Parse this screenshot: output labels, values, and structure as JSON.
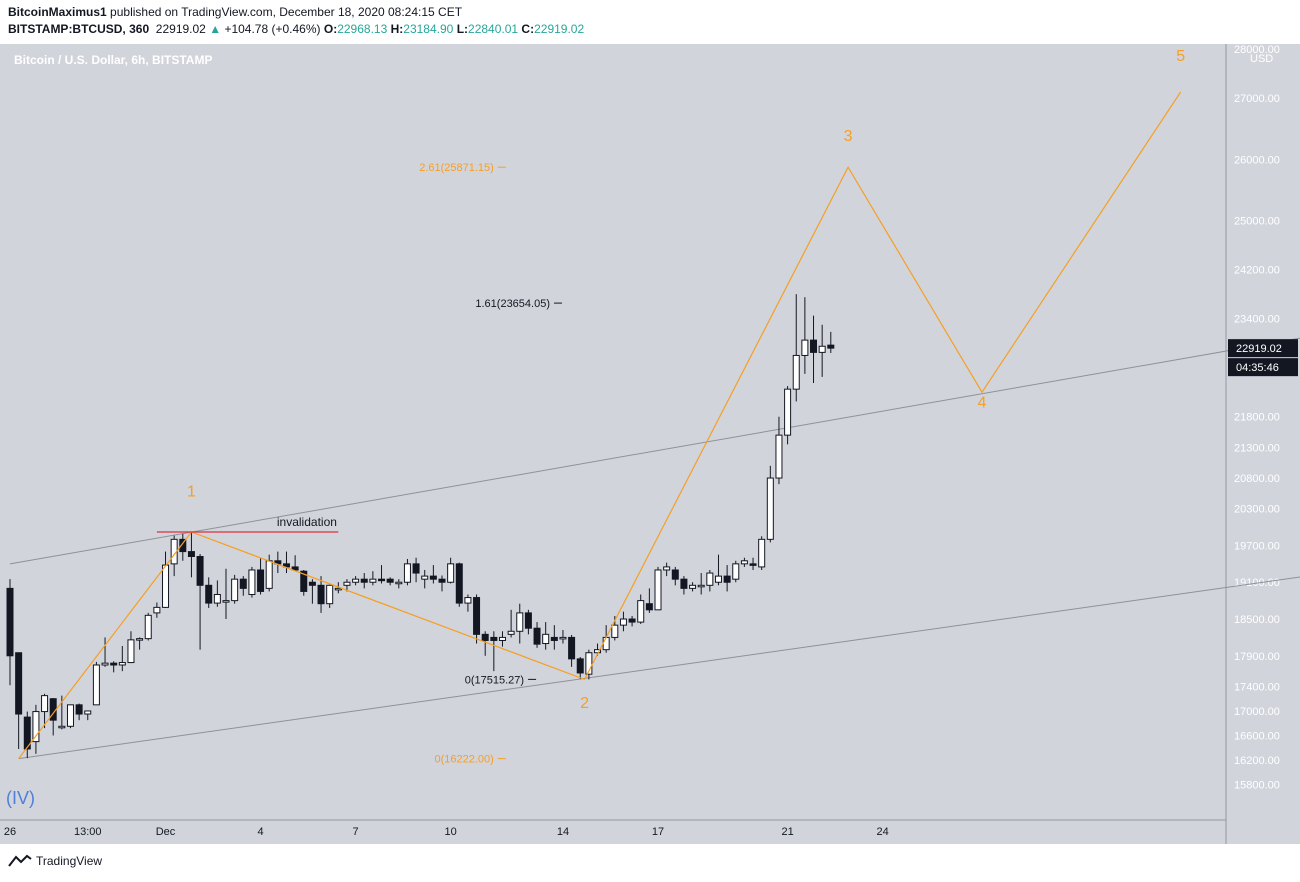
{
  "header": {
    "author": "BitcoinMaximus1",
    "published_text": "published on TradingView.com, December 18, 2020 08:24:15 CET",
    "symbol": "BITSTAMP:BTCUSD, 360",
    "last": "22919.02",
    "change": "+104.78 (+0.46%)",
    "open_label": "O:",
    "open": "22968.13",
    "high_label": "H:",
    "high": "23184.90",
    "low_label": "L:",
    "low": "22840.01",
    "close_label": "C:",
    "close": "22919.02"
  },
  "footer": {
    "brand": "TradingView"
  },
  "colors": {
    "plot_bg": "#d2d4dc",
    "wave": "#f59f24",
    "channel": "#8f9199",
    "invalidation": "#e0323d",
    "roman": "#4e7fd9"
  },
  "chart_data": {
    "type": "candlestick",
    "title": "Bitcoin / U.S. Dollar, 6h, BITSTAMP",
    "currency": "USD",
    "y_ticks": [
      15800,
      16200,
      16600,
      17000,
      17400,
      17900,
      18500,
      19100,
      19700,
      20300,
      20800,
      21300,
      21800,
      22900,
      23400,
      24200,
      25000,
      26000,
      27000
    ],
    "y_top_label": "28000.00",
    "x_ticks": [
      {
        "label": "26",
        "x": 0
      },
      {
        "label": "13:00",
        "x": 18
      },
      {
        "label": "Dec",
        "x": 36
      },
      {
        "label": "4",
        "x": 58
      },
      {
        "label": "7",
        "x": 80
      },
      {
        "label": "10",
        "x": 102
      },
      {
        "label": "14",
        "x": 128
      },
      {
        "label": "17",
        "x": 150
      },
      {
        "label": "21",
        "x": 180
      },
      {
        "label": "24",
        "x": 202
      }
    ],
    "price_label": "22919.02",
    "countdown_label": "04:35:46",
    "candles": [
      {
        "t": 0,
        "o": 19000,
        "h": 19150,
        "l": 17420,
        "c": 17900
      },
      {
        "t": 2,
        "o": 17950,
        "h": 17950,
        "l": 16380,
        "c": 16950
      },
      {
        "t": 4,
        "o": 16900,
        "h": 16990,
        "l": 16230,
        "c": 16380
      },
      {
        "t": 6,
        "o": 16500,
        "h": 17100,
        "l": 16300,
        "c": 16990
      },
      {
        "t": 8,
        "o": 16990,
        "h": 17280,
        "l": 16720,
        "c": 17250
      },
      {
        "t": 10,
        "o": 17200,
        "h": 17210,
        "l": 16600,
        "c": 16850
      },
      {
        "t": 12,
        "o": 16750,
        "h": 17250,
        "l": 16700,
        "c": 16750
      },
      {
        "t": 14,
        "o": 16750,
        "h": 17100,
        "l": 16720,
        "c": 17100
      },
      {
        "t": 16,
        "o": 17100,
        "h": 17120,
        "l": 16850,
        "c": 16950
      },
      {
        "t": 18,
        "o": 16950,
        "h": 17000,
        "l": 16850,
        "c": 17000
      },
      {
        "t": 20,
        "o": 17100,
        "h": 17800,
        "l": 17100,
        "c": 17750
      },
      {
        "t": 22,
        "o": 17750,
        "h": 18200,
        "l": 17720,
        "c": 17780
      },
      {
        "t": 24,
        "o": 17780,
        "h": 17810,
        "l": 17630,
        "c": 17750
      },
      {
        "t": 26,
        "o": 17750,
        "h": 18060,
        "l": 17650,
        "c": 17790
      },
      {
        "t": 28,
        "o": 17790,
        "h": 18300,
        "l": 17780,
        "c": 18160
      },
      {
        "t": 30,
        "o": 18160,
        "h": 18200,
        "l": 18000,
        "c": 18180
      },
      {
        "t": 32,
        "o": 18180,
        "h": 18600,
        "l": 18150,
        "c": 18560
      },
      {
        "t": 34,
        "o": 18600,
        "h": 18770,
        "l": 18520,
        "c": 18690
      },
      {
        "t": 36,
        "o": 18690,
        "h": 19600,
        "l": 18680,
        "c": 19380
      },
      {
        "t": 38,
        "o": 19400,
        "h": 19860,
        "l": 19200,
        "c": 19800
      },
      {
        "t": 40,
        "o": 19800,
        "h": 19890,
        "l": 19450,
        "c": 19600
      },
      {
        "t": 42,
        "o": 19600,
        "h": 19920,
        "l": 19180,
        "c": 19520
      },
      {
        "t": 44,
        "o": 19520,
        "h": 19560,
        "l": 18000,
        "c": 19050
      },
      {
        "t": 46,
        "o": 19050,
        "h": 19180,
        "l": 18680,
        "c": 18760
      },
      {
        "t": 48,
        "o": 18760,
        "h": 19130,
        "l": 18700,
        "c": 18900
      },
      {
        "t": 50,
        "o": 18800,
        "h": 19320,
        "l": 18500,
        "c": 18800
      },
      {
        "t": 52,
        "o": 18800,
        "h": 19220,
        "l": 18750,
        "c": 19150
      },
      {
        "t": 54,
        "o": 19150,
        "h": 19200,
        "l": 18880,
        "c": 19000
      },
      {
        "t": 56,
        "o": 18900,
        "h": 19350,
        "l": 18850,
        "c": 19300
      },
      {
        "t": 58,
        "o": 19300,
        "h": 19490,
        "l": 18900,
        "c": 18950
      },
      {
        "t": 60,
        "o": 19000,
        "h": 19550,
        "l": 18950,
        "c": 19450
      },
      {
        "t": 62,
        "o": 19450,
        "h": 19600,
        "l": 19250,
        "c": 19400
      },
      {
        "t": 64,
        "o": 19400,
        "h": 19600,
        "l": 19250,
        "c": 19350
      },
      {
        "t": 66,
        "o": 19350,
        "h": 19540,
        "l": 19300,
        "c": 19300
      },
      {
        "t": 68,
        "o": 19280,
        "h": 19300,
        "l": 18880,
        "c": 18950
      },
      {
        "t": 70,
        "o": 19100,
        "h": 19150,
        "l": 18750,
        "c": 19050
      },
      {
        "t": 72,
        "o": 19050,
        "h": 19200,
        "l": 18600,
        "c": 18750
      },
      {
        "t": 74,
        "o": 18750,
        "h": 19060,
        "l": 18680,
        "c": 19050
      },
      {
        "t": 76,
        "o": 18980,
        "h": 19100,
        "l": 18920,
        "c": 19000
      },
      {
        "t": 78,
        "o": 19050,
        "h": 19150,
        "l": 18950,
        "c": 19100
      },
      {
        "t": 80,
        "o": 19100,
        "h": 19200,
        "l": 19050,
        "c": 19150
      },
      {
        "t": 82,
        "o": 19150,
        "h": 19250,
        "l": 19000,
        "c": 19100
      },
      {
        "t": 84,
        "o": 19100,
        "h": 19280,
        "l": 19050,
        "c": 19150
      },
      {
        "t": 86,
        "o": 19150,
        "h": 19380,
        "l": 19080,
        "c": 19130
      },
      {
        "t": 88,
        "o": 19150,
        "h": 19180,
        "l": 19050,
        "c": 19100
      },
      {
        "t": 90,
        "o": 19100,
        "h": 19150,
        "l": 19000,
        "c": 19100
      },
      {
        "t": 92,
        "o": 19100,
        "h": 19480,
        "l": 19050,
        "c": 19400
      },
      {
        "t": 94,
        "o": 19400,
        "h": 19500,
        "l": 19100,
        "c": 19250
      },
      {
        "t": 96,
        "o": 19150,
        "h": 19300,
        "l": 19000,
        "c": 19200
      },
      {
        "t": 98,
        "o": 19200,
        "h": 19380,
        "l": 19080,
        "c": 19150
      },
      {
        "t": 100,
        "o": 19150,
        "h": 19210,
        "l": 18950,
        "c": 19100
      },
      {
        "t": 102,
        "o": 19100,
        "h": 19500,
        "l": 19080,
        "c": 19400
      },
      {
        "t": 104,
        "o": 19400,
        "h": 19420,
        "l": 18700,
        "c": 18760
      },
      {
        "t": 106,
        "o": 18760,
        "h": 18900,
        "l": 18620,
        "c": 18850
      },
      {
        "t": 108,
        "o": 18850,
        "h": 18900,
        "l": 18100,
        "c": 18250
      },
      {
        "t": 110,
        "o": 18250,
        "h": 18300,
        "l": 17900,
        "c": 18150
      },
      {
        "t": 112,
        "o": 18200,
        "h": 18300,
        "l": 17650,
        "c": 18150
      },
      {
        "t": 114,
        "o": 18150,
        "h": 18300,
        "l": 18050,
        "c": 18200
      },
      {
        "t": 116,
        "o": 18250,
        "h": 18650,
        "l": 18200,
        "c": 18300
      },
      {
        "t": 118,
        "o": 18300,
        "h": 18750,
        "l": 18100,
        "c": 18600
      },
      {
        "t": 120,
        "o": 18600,
        "h": 18650,
        "l": 18250,
        "c": 18350
      },
      {
        "t": 122,
        "o": 18350,
        "h": 18450,
        "l": 18030,
        "c": 18090
      },
      {
        "t": 124,
        "o": 18100,
        "h": 18450,
        "l": 18000,
        "c": 18250
      },
      {
        "t": 126,
        "o": 18200,
        "h": 18400,
        "l": 18000,
        "c": 18150
      },
      {
        "t": 128,
        "o": 18180,
        "h": 18320,
        "l": 18100,
        "c": 18200
      },
      {
        "t": 130,
        "o": 18200,
        "h": 18240,
        "l": 17720,
        "c": 17850
      },
      {
        "t": 132,
        "o": 17850,
        "h": 17880,
        "l": 17520,
        "c": 17620
      },
      {
        "t": 134,
        "o": 17600,
        "h": 18000,
        "l": 17515,
        "c": 17950
      },
      {
        "t": 136,
        "o": 17950,
        "h": 18100,
        "l": 17900,
        "c": 18000
      },
      {
        "t": 138,
        "o": 18000,
        "h": 18400,
        "l": 17950,
        "c": 18200
      },
      {
        "t": 140,
        "o": 18200,
        "h": 18550,
        "l": 18150,
        "c": 18400
      },
      {
        "t": 142,
        "o": 18400,
        "h": 18620,
        "l": 18300,
        "c": 18500
      },
      {
        "t": 144,
        "o": 18500,
        "h": 18550,
        "l": 18380,
        "c": 18450
      },
      {
        "t": 146,
        "o": 18450,
        "h": 18900,
        "l": 18420,
        "c": 18800
      },
      {
        "t": 148,
        "o": 18750,
        "h": 19000,
        "l": 18600,
        "c": 18650
      },
      {
        "t": 150,
        "o": 18650,
        "h": 19350,
        "l": 18650,
        "c": 19300
      },
      {
        "t": 152,
        "o": 19300,
        "h": 19420,
        "l": 19200,
        "c": 19350
      },
      {
        "t": 154,
        "o": 19300,
        "h": 19350,
        "l": 19050,
        "c": 19150
      },
      {
        "t": 156,
        "o": 19150,
        "h": 19200,
        "l": 18900,
        "c": 19000
      },
      {
        "t": 158,
        "o": 19000,
        "h": 19100,
        "l": 18950,
        "c": 19050
      },
      {
        "t": 160,
        "o": 19050,
        "h": 19250,
        "l": 18900,
        "c": 19050
      },
      {
        "t": 162,
        "o": 19050,
        "h": 19300,
        "l": 18950,
        "c": 19250
      },
      {
        "t": 164,
        "o": 19100,
        "h": 19550,
        "l": 19050,
        "c": 19200
      },
      {
        "t": 166,
        "o": 19200,
        "h": 19380,
        "l": 18950,
        "c": 19100
      },
      {
        "t": 168,
        "o": 19150,
        "h": 19450,
        "l": 19100,
        "c": 19400
      },
      {
        "t": 170,
        "o": 19400,
        "h": 19500,
        "l": 19350,
        "c": 19450
      },
      {
        "t": 172,
        "o": 19400,
        "h": 19500,
        "l": 19300,
        "c": 19380
      },
      {
        "t": 174,
        "o": 19350,
        "h": 19850,
        "l": 19300,
        "c": 19800
      },
      {
        "t": 176,
        "o": 19800,
        "h": 21000,
        "l": 19750,
        "c": 20800
      },
      {
        "t": 178,
        "o": 20800,
        "h": 21800,
        "l": 20700,
        "c": 21500
      },
      {
        "t": 180,
        "o": 21500,
        "h": 22300,
        "l": 21350,
        "c": 22250
      },
      {
        "t": 182,
        "o": 22250,
        "h": 23800,
        "l": 22050,
        "c": 22800
      },
      {
        "t": 184,
        "o": 22800,
        "h": 23750,
        "l": 22500,
        "c": 23050
      },
      {
        "t": 186,
        "o": 23050,
        "h": 23450,
        "l": 22350,
        "c": 22850
      },
      {
        "t": 188,
        "o": 22850,
        "h": 23300,
        "l": 22450,
        "c": 22950
      },
      {
        "t": 190,
        "o": 22968,
        "h": 23185,
        "l": 22840,
        "c": 22919
      }
    ],
    "wave_path": [
      {
        "t": 2,
        "p": 16222
      },
      {
        "t": 42,
        "p": 19920
      },
      {
        "t": 133,
        "p": 17515
      },
      {
        "t": 194,
        "p": 25871
      },
      {
        "t": 225,
        "p": 22200
      },
      {
        "t": 271,
        "p": 27100
      }
    ],
    "wave_labels": [
      {
        "label": "1",
        "t": 42,
        "p": 20500
      },
      {
        "label": "2",
        "t": 133,
        "p": 17050
      },
      {
        "label": "3",
        "t": 194,
        "p": 26300
      },
      {
        "label": "4",
        "t": 225,
        "p": 21950
      },
      {
        "label": "5",
        "t": 271,
        "p": 27600
      }
    ],
    "channel_upper": [
      {
        "t": 0,
        "p": 19400
      },
      {
        "t": 300,
        "p": 23100
      }
    ],
    "channel_lower": [
      {
        "t": 2,
        "p": 16222
      },
      {
        "t": 300,
        "p": 19200
      }
    ],
    "invalidation": {
      "label": "invalidation",
      "p": 19920,
      "t1": 34,
      "t2": 76
    },
    "fib_levels": [
      {
        "label": "2.61(25871.15)",
        "p": 25871.15,
        "t": 112,
        "color": "wave"
      },
      {
        "label": "1.61(23654.05)",
        "p": 23654.05,
        "t": 125,
        "color": "black"
      },
      {
        "label": "0(17515.27)",
        "p": 17515.27,
        "t": 119,
        "color": "black"
      },
      {
        "label": "0(16222.00)",
        "p": 16222.0,
        "t": 112,
        "color": "wave"
      }
    ],
    "roman_label": "(IV)"
  }
}
